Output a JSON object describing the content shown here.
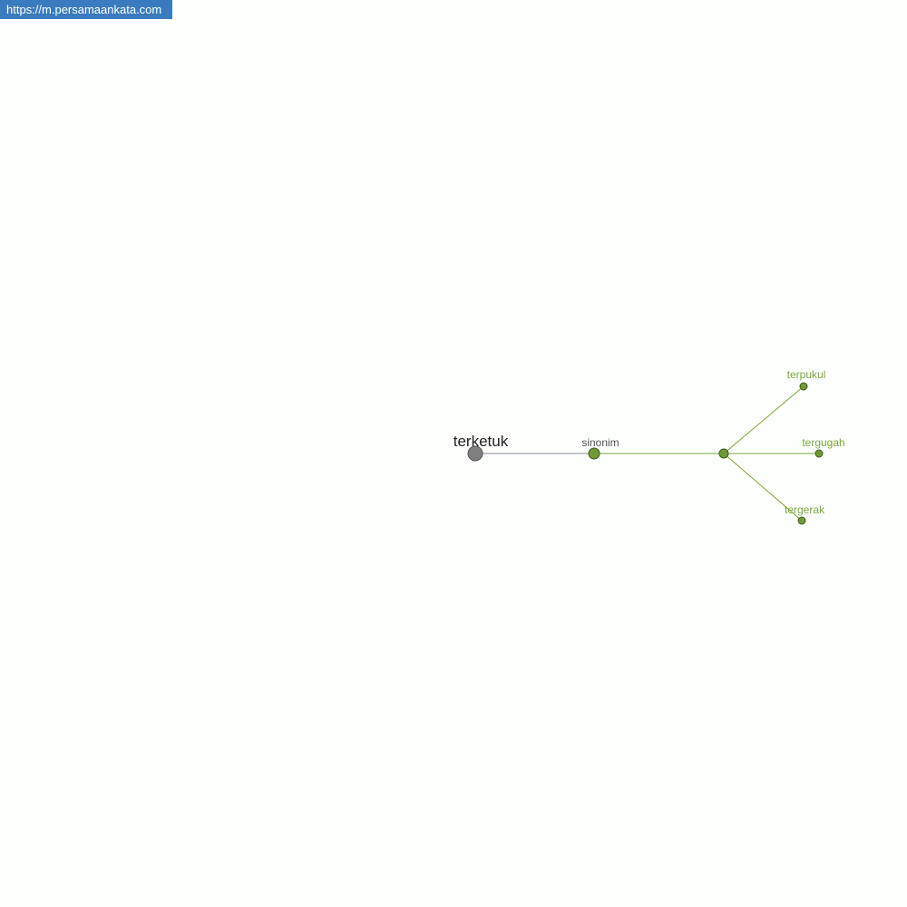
{
  "banner": {
    "url": "https://m.persamaankata.com"
  },
  "graph": {
    "root": {
      "label": "terketuk",
      "color": "#808080"
    },
    "relation": {
      "label": "sinonim",
      "color": "#6f9a37"
    },
    "synonyms": [
      {
        "label": "terpukul"
      },
      {
        "label": "tergugah"
      },
      {
        "label": "tergerak"
      }
    ],
    "colors": {
      "root_edge": "#8a8a99",
      "edge": "#7aa63a",
      "node": "#6f9a37",
      "node_stroke": "#3f5a20",
      "leaf_text": "#7aa63a",
      "root_text": "#222222",
      "relation_text": "#555555"
    }
  }
}
